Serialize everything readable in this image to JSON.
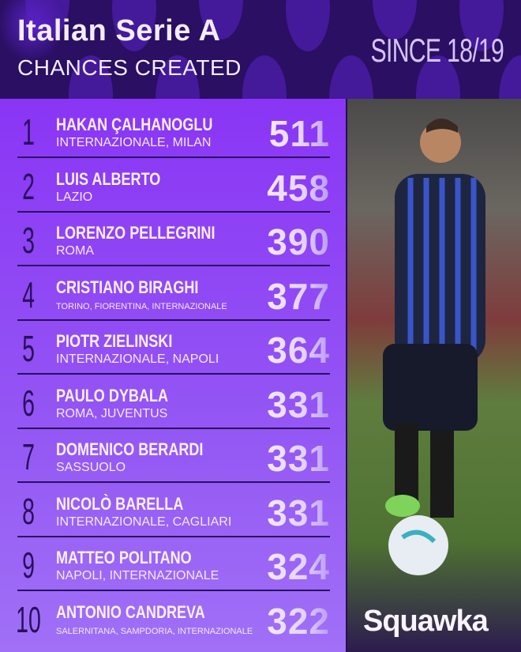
{
  "header": {
    "title": "Italian Serie A",
    "subtitle": "CHANCES CREATED",
    "period": "SINCE 18/19"
  },
  "rows": [
    {
      "rank": "1",
      "name": "HAKAN ÇALHANOGLU",
      "clubs": "INTERNAZIONALE, MILAN",
      "value": "511"
    },
    {
      "rank": "2",
      "name": "LUIS ALBERTO",
      "clubs": "LAZIO",
      "value": "458"
    },
    {
      "rank": "3",
      "name": "LORENZO PELLEGRINI",
      "clubs": "ROMA",
      "value": "390"
    },
    {
      "rank": "4",
      "name": "CRISTIANO BIRAGHI",
      "clubs": "TORINO, FIORENTINA, INTERNAZIONALE",
      "value": "377"
    },
    {
      "rank": "5",
      "name": "PIOTR ZIELINSKI",
      "clubs": "INTERNAZIONALE, NAPOLI",
      "value": "364"
    },
    {
      "rank": "6",
      "name": "PAULO DYBALA",
      "clubs": "ROMA, JUVENTUS",
      "value": "331"
    },
    {
      "rank": "7",
      "name": "DOMENICO BERARDI",
      "clubs": "SASSUOLO",
      "value": "331"
    },
    {
      "rank": "8",
      "name": "NICOLÒ BARELLA",
      "clubs": "INTERNAZIONALE, CAGLIARI",
      "value": "331"
    },
    {
      "rank": "9",
      "name": "MATTEO POLITANO",
      "clubs": "NAPOLI, INTERNAZIONALE",
      "value": "324"
    },
    {
      "rank": "10",
      "name": "ANTONIO CANDREVA",
      "clubs": "SALERNITANA, SAMPDORIA, INTERNAZIONALE",
      "value": "322"
    }
  ],
  "brand": "Squawka",
  "colors": {
    "header_bg": "#2a0f62",
    "list_bg": "#8a35f5",
    "rank": "#2a0f5e",
    "text": "#fbefff"
  }
}
